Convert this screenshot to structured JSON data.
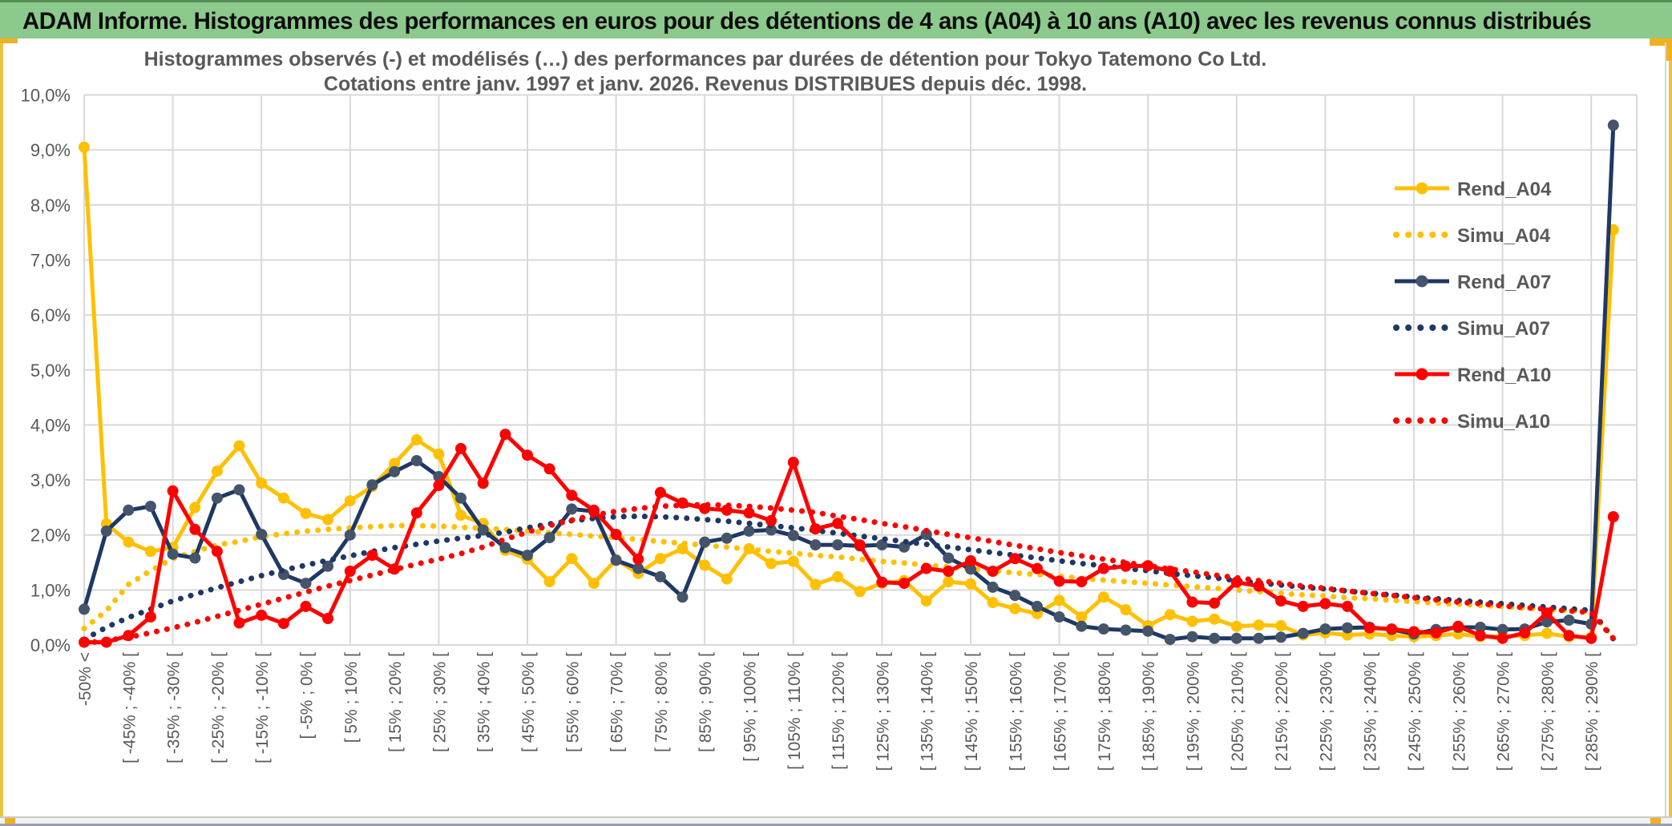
{
  "window": {
    "title": "ADAM Informe. Histogrammes des performances en euros pour des détentions de 4 ans (A04) à 10 ans (A10) avec les revenus connus distribués"
  },
  "chart_data": {
    "type": "line",
    "title_line1": "Histogrammes observés (-) et modélisés (…) des performances par durées de détention pour Tokyo Tatemono Co Ltd.",
    "title_line2": "Cotations entre janv. 1997 et janv. 2026. Revenus DISTRIBUES depuis déc. 1998.",
    "ylabel": "",
    "xlabel": "",
    "ylim": [
      0,
      10
    ],
    "grid": true,
    "legend_position": "right-upper",
    "ytick_labels": [
      "0,0%",
      "1,0%",
      "2,0%",
      "3,0%",
      "4,0%",
      "5,0%",
      "6,0%",
      "7,0%",
      "8,0%",
      "9,0%",
      "10,0%"
    ],
    "n_categories": 70,
    "x_tick_labels": [
      {
        "i": 0,
        "t": "-50% <"
      },
      {
        "i": 2,
        "t": "[ -45% ; -40% ["
      },
      {
        "i": 4,
        "t": "[ -35% ; -30% ["
      },
      {
        "i": 6,
        "t": "[ -25% ; -20% ["
      },
      {
        "i": 8,
        "t": "[ -15% ; -10% ["
      },
      {
        "i": 10,
        "t": "[ -5% ; 0% ["
      },
      {
        "i": 12,
        "t": "[ 5% ; 10% ["
      },
      {
        "i": 14,
        "t": "[ 15% ; 20% ["
      },
      {
        "i": 16,
        "t": "[ 25% ; 30% ["
      },
      {
        "i": 18,
        "t": "[ 35% ; 40% ["
      },
      {
        "i": 20,
        "t": "[ 45% ; 50% ["
      },
      {
        "i": 22,
        "t": "[ 55% ; 60% ["
      },
      {
        "i": 24,
        "t": "[ 65% ; 70% ["
      },
      {
        "i": 26,
        "t": "[ 75% ; 80% ["
      },
      {
        "i": 28,
        "t": "[ 85% ; 90% ["
      },
      {
        "i": 30,
        "t": "[ 95% ; 100% ["
      },
      {
        "i": 32,
        "t": "[ 105% ; 110% ["
      },
      {
        "i": 34,
        "t": "[ 115% ; 120% ["
      },
      {
        "i": 36,
        "t": "[ 125% ; 130% ["
      },
      {
        "i": 38,
        "t": "[ 135% ; 140% ["
      },
      {
        "i": 40,
        "t": "[ 145% ; 150% ["
      },
      {
        "i": 42,
        "t": "[ 155% ; 160% ["
      },
      {
        "i": 44,
        "t": "[ 165% ; 170% ["
      },
      {
        "i": 46,
        "t": "[ 175% ; 180% ["
      },
      {
        "i": 48,
        "t": "[ 185% ; 190% ["
      },
      {
        "i": 50,
        "t": "[ 195% ; 200% ["
      },
      {
        "i": 52,
        "t": "[ 205% ; 210% ["
      },
      {
        "i": 54,
        "t": "[ 215% ; 220% ["
      },
      {
        "i": 56,
        "t": "[ 225% ; 230% ["
      },
      {
        "i": 58,
        "t": "[ 235% ; 240% ["
      },
      {
        "i": 60,
        "t": "[ 245% ; 250% ["
      },
      {
        "i": 62,
        "t": "[ 255% ; 260% ["
      },
      {
        "i": 64,
        "t": "[ 265% ; 270% ["
      },
      {
        "i": 66,
        "t": "[ 275% ; 280% ["
      },
      {
        "i": 68,
        "t": "[ 285% ; 290% ["
      }
    ],
    "colors": {
      "A04": "#FFC000",
      "A07": "#1F3864",
      "A07_marker": "#44546A",
      "A10": "#FE0000",
      "grid": "#D9D9D9",
      "text": "#595959"
    },
    "series": [
      {
        "name": "Rend_A04",
        "style": "solid",
        "color": "#FFC000",
        "marker": "#FFC000",
        "values": [
          9.05,
          2.2,
          1.87,
          1.7,
          1.77,
          2.5,
          3.16,
          3.62,
          2.94,
          2.67,
          2.39,
          2.28,
          2.62,
          2.88,
          3.3,
          3.73,
          3.47,
          2.36,
          2.21,
          1.72,
          1.56,
          1.15,
          1.57,
          1.12,
          1.55,
          1.3,
          1.57,
          1.75,
          1.45,
          1.2,
          1.75,
          1.48,
          1.52,
          1.1,
          1.24,
          0.97,
          1.12,
          1.17,
          0.8,
          1.15,
          1.11,
          0.77,
          0.66,
          0.57,
          0.81,
          0.51,
          0.87,
          0.64,
          0.35,
          0.55,
          0.43,
          0.47,
          0.34,
          0.36,
          0.35,
          0.18,
          0.22,
          0.18,
          0.2,
          0.17,
          0.15,
          0.17,
          0.2,
          0.15,
          0.16,
          0.17,
          0.21,
          0.15,
          0.14,
          7.55
        ]
      },
      {
        "name": "Simu_A04",
        "style": "dotted",
        "color": "#FFC000",
        "values": [
          0.3,
          0.62,
          1.1,
          1.35,
          1.57,
          1.7,
          1.82,
          1.88,
          1.97,
          2.02,
          2.07,
          2.1,
          2.13,
          2.15,
          2.17,
          2.17,
          2.16,
          2.14,
          2.12,
          2.1,
          2.07,
          2.04,
          2.01,
          1.98,
          1.95,
          1.92,
          1.88,
          1.85,
          1.81,
          1.78,
          1.74,
          1.7,
          1.67,
          1.63,
          1.6,
          1.56,
          1.52,
          1.49,
          1.45,
          1.42,
          1.38,
          1.35,
          1.31,
          1.28,
          1.25,
          1.21,
          1.18,
          1.15,
          1.12,
          1.09,
          1.06,
          1.03,
          1.0,
          0.97,
          0.94,
          0.91,
          0.89,
          0.86,
          0.84,
          0.81,
          0.79,
          0.76,
          0.74,
          0.72,
          0.7,
          0.67,
          0.65,
          0.63,
          0.61,
          0.12
        ]
      },
      {
        "name": "Rend_A07",
        "style": "solid",
        "color": "#1F3864",
        "marker": "#44546A",
        "values": [
          0.65,
          2.07,
          2.45,
          2.52,
          1.65,
          1.58,
          2.67,
          2.82,
          2.01,
          1.28,
          1.12,
          1.43,
          2.0,
          2.91,
          3.15,
          3.35,
          3.06,
          2.67,
          2.09,
          1.77,
          1.63,
          1.95,
          2.47,
          2.43,
          1.54,
          1.39,
          1.24,
          0.87,
          1.87,
          1.94,
          2.07,
          2.09,
          1.99,
          1.82,
          1.82,
          1.8,
          1.82,
          1.78,
          2.01,
          1.58,
          1.38,
          1.05,
          0.9,
          0.7,
          0.51,
          0.34,
          0.29,
          0.27,
          0.25,
          0.1,
          0.15,
          0.12,
          0.12,
          0.12,
          0.14,
          0.21,
          0.29,
          0.31,
          0.32,
          0.28,
          0.2,
          0.28,
          0.32,
          0.32,
          0.28,
          0.29,
          0.42,
          0.45,
          0.38,
          9.45
        ]
      },
      {
        "name": "Simu_A07",
        "style": "dotted",
        "color": "#1F3864",
        "values": [
          0.1,
          0.32,
          0.5,
          0.65,
          0.8,
          0.92,
          1.04,
          1.15,
          1.26,
          1.36,
          1.45,
          1.54,
          1.62,
          1.7,
          1.77,
          1.83,
          1.89,
          1.94,
          1.99,
          2.05,
          2.13,
          2.2,
          2.26,
          2.3,
          2.33,
          2.34,
          2.33,
          2.31,
          2.28,
          2.25,
          2.21,
          2.17,
          2.13,
          2.08,
          2.03,
          1.98,
          1.93,
          1.88,
          1.83,
          1.78,
          1.73,
          1.68,
          1.63,
          1.58,
          1.53,
          1.48,
          1.44,
          1.39,
          1.35,
          1.3,
          1.26,
          1.22,
          1.17,
          1.13,
          1.09,
          1.05,
          1.02,
          0.98,
          0.94,
          0.91,
          0.87,
          0.84,
          0.81,
          0.78,
          0.75,
          0.72,
          0.69,
          0.66,
          0.63,
          0.11
        ]
      },
      {
        "name": "Rend_A10",
        "style": "solid",
        "color": "#FE0000",
        "marker": "#FE0000",
        "values": [
          0.05,
          0.05,
          0.17,
          0.51,
          2.8,
          2.1,
          1.7,
          0.4,
          0.54,
          0.39,
          0.7,
          0.48,
          1.34,
          1.63,
          1.38,
          2.4,
          2.9,
          3.57,
          2.94,
          3.83,
          3.45,
          3.2,
          2.72,
          2.45,
          2.01,
          1.56,
          2.77,
          2.58,
          2.48,
          2.45,
          2.4,
          2.26,
          3.32,
          2.11,
          2.21,
          1.82,
          1.14,
          1.12,
          1.39,
          1.34,
          1.53,
          1.34,
          1.57,
          1.39,
          1.16,
          1.15,
          1.39,
          1.43,
          1.44,
          1.34,
          0.78,
          0.76,
          1.14,
          1.07,
          0.8,
          0.7,
          0.75,
          0.7,
          0.31,
          0.29,
          0.24,
          0.22,
          0.34,
          0.17,
          0.12,
          0.22,
          0.58,
          0.17,
          0.12,
          2.33
        ]
      },
      {
        "name": "Simu_A10",
        "style": "dotted",
        "color": "#FE0000",
        "values": [
          0.03,
          0.08,
          0.14,
          0.22,
          0.31,
          0.41,
          0.52,
          0.63,
          0.74,
          0.85,
          0.96,
          1.07,
          1.17,
          1.27,
          1.37,
          1.47,
          1.56,
          1.66,
          1.78,
          1.92,
          2.05,
          2.17,
          2.27,
          2.36,
          2.43,
          2.48,
          2.52,
          2.54,
          2.55,
          2.54,
          2.52,
          2.49,
          2.45,
          2.41,
          2.34,
          2.28,
          2.21,
          2.15,
          2.08,
          2.01,
          1.95,
          1.88,
          1.81,
          1.75,
          1.68,
          1.62,
          1.56,
          1.5,
          1.44,
          1.38,
          1.33,
          1.27,
          1.22,
          1.17,
          1.12,
          1.07,
          1.03,
          0.98,
          0.94,
          0.9,
          0.86,
          0.82,
          0.78,
          0.75,
          0.71,
          0.68,
          0.65,
          0.62,
          0.59,
          0.12
        ]
      }
    ]
  }
}
